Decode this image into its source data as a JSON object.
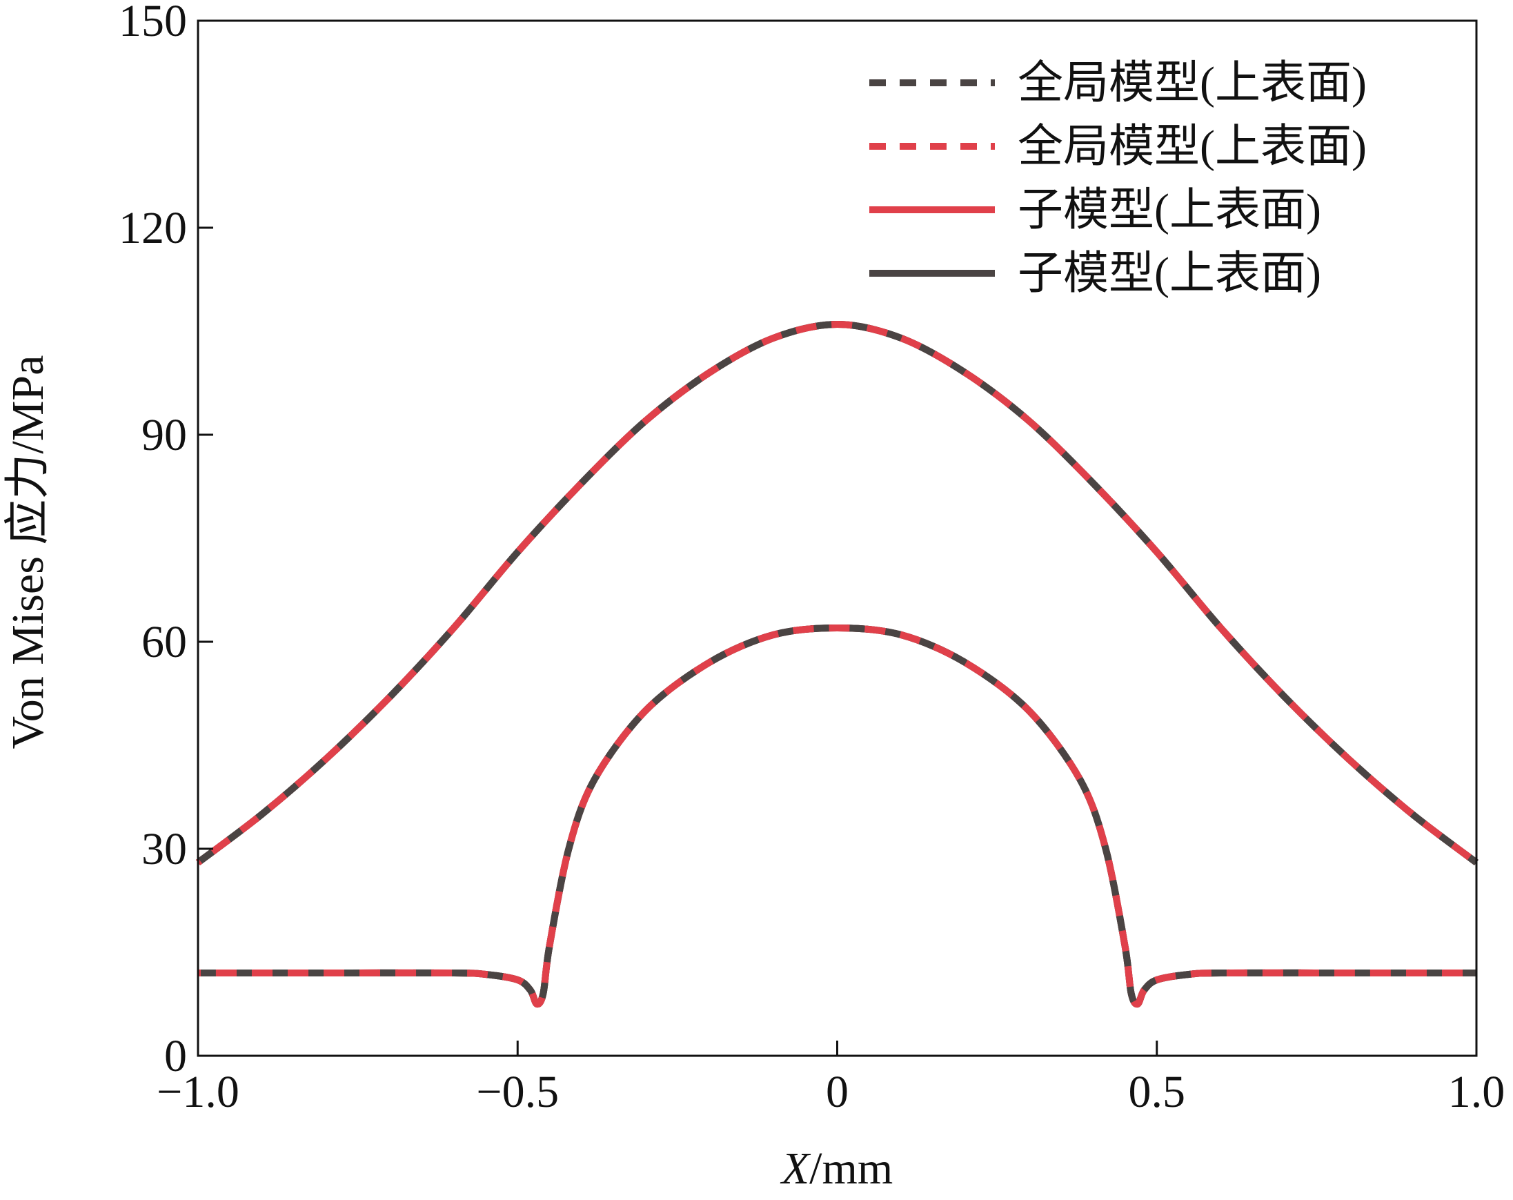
{
  "chart_data": {
    "type": "line",
    "title": "",
    "xlabel_italic": "X",
    "xlabel_unit": "/mm",
    "ylabel": "Von Mises 应力/MPa",
    "xlim": [
      -1.0,
      1.0
    ],
    "ylim": [
      0,
      150
    ],
    "xticks": [
      -1.0,
      -0.5,
      0,
      0.5,
      1.0
    ],
    "xtick_labels": [
      "−1.0",
      "−0.5",
      "0",
      "0.5",
      "1.0"
    ],
    "yticks": [
      0,
      30,
      60,
      90,
      120,
      150
    ],
    "ytick_labels": [
      "0",
      "30",
      "60",
      "90",
      "120",
      "150"
    ],
    "grid": false,
    "legend_position": "top-right",
    "colors": {
      "dark": "#4a4443",
      "red": "#e0404a"
    },
    "series": [
      {
        "name": "全局模型(上表面)",
        "style": "dashed",
        "color": "dark",
        "x": [
          -1.0,
          -0.9,
          -0.8,
          -0.7,
          -0.6,
          -0.5,
          -0.4,
          -0.3,
          -0.2,
          -0.1,
          0.0,
          0.1,
          0.2,
          0.3,
          0.4,
          0.5,
          0.6,
          0.7,
          0.8,
          0.9,
          1.0
        ],
        "y": [
          28,
          35,
          43,
          52,
          62,
          73,
          83,
          92,
          99,
          104,
          106,
          104,
          99,
          92,
          83,
          73,
          62,
          52,
          43,
          35,
          28
        ]
      },
      {
        "name": "全局模型(上表面)",
        "style": "dashed",
        "color": "red",
        "x": [
          -1.0,
          -0.9,
          -0.8,
          -0.7,
          -0.6,
          -0.5,
          -0.4,
          -0.3,
          -0.2,
          -0.1,
          0.0,
          0.1,
          0.2,
          0.3,
          0.4,
          0.5,
          0.6,
          0.7,
          0.8,
          0.9,
          1.0
        ],
        "y": [
          28,
          35,
          43,
          52,
          62,
          73,
          83,
          92,
          99,
          104,
          106,
          104,
          99,
          92,
          83,
          73,
          62,
          52,
          43,
          35,
          28
        ]
      },
      {
        "name": "子模型(上表面)",
        "style": "solid",
        "color": "red",
        "x": [
          -1.0,
          -0.8,
          -0.6,
          -0.55,
          -0.5,
          -0.48,
          -0.47,
          -0.46,
          -0.45,
          -0.42,
          -0.38,
          -0.3,
          -0.2,
          -0.1,
          0.0,
          0.1,
          0.2,
          0.3,
          0.38,
          0.42,
          0.45,
          0.46,
          0.47,
          0.48,
          0.5,
          0.55,
          0.6,
          0.8,
          1.0
        ],
        "y": [
          12,
          12,
          12,
          11.8,
          11,
          9.5,
          7.5,
          9,
          16,
          30,
          40,
          50,
          57,
          61,
          62,
          61,
          57,
          50,
          40,
          30,
          16,
          9,
          7.5,
          9.5,
          11,
          11.8,
          12,
          12,
          12
        ]
      },
      {
        "name": "子模型(上表面)",
        "style": "solid",
        "color": "dark",
        "x": [
          -1.0,
          -0.8,
          -0.6,
          -0.55,
          -0.5,
          -0.48,
          -0.47,
          -0.46,
          -0.45,
          -0.42,
          -0.38,
          -0.3,
          -0.2,
          -0.1,
          0.0,
          0.1,
          0.2,
          0.3,
          0.38,
          0.42,
          0.45,
          0.46,
          0.47,
          0.48,
          0.5,
          0.55,
          0.6,
          0.8,
          1.0
        ],
        "y": [
          12,
          12,
          12,
          11.8,
          11,
          9.5,
          7.5,
          9,
          16,
          30,
          40,
          50,
          57,
          61,
          62,
          61,
          57,
          50,
          40,
          30,
          16,
          9,
          7.5,
          9.5,
          11,
          11.8,
          12,
          12,
          12
        ]
      }
    ],
    "overlay_curves": [
      {
        "name": "全局模型(上表面)",
        "color": "dark",
        "style": "dashed",
        "x": [
          -1.0,
          -0.8,
          -0.6,
          -0.55,
          -0.5,
          -0.48,
          -0.47,
          -0.46,
          -0.45,
          -0.42,
          -0.38,
          -0.3,
          -0.2,
          -0.1,
          0.0,
          0.1,
          0.2,
          0.3,
          0.38,
          0.42,
          0.45,
          0.46,
          0.47,
          0.48,
          0.5,
          0.55,
          0.6,
          0.8,
          1.0
        ],
        "y": [
          12,
          12,
          12,
          11.8,
          11,
          9.5,
          7.5,
          9,
          16,
          30,
          40,
          50,
          57,
          61,
          62,
          61,
          57,
          50,
          40,
          30,
          16,
          9,
          7.5,
          9.5,
          11,
          11.8,
          12,
          12,
          12
        ]
      },
      {
        "name": "全局模型(上表面)",
        "color": "red",
        "style": "dashed",
        "x": [
          -1.0,
          -0.8,
          -0.6,
          -0.55,
          -0.5,
          -0.48,
          -0.47,
          -0.46,
          -0.45,
          -0.42,
          -0.38,
          -0.3,
          -0.2,
          -0.1,
          0.0,
          0.1,
          0.2,
          0.3,
          0.38,
          0.42,
          0.45,
          0.46,
          0.47,
          0.48,
          0.5,
          0.55,
          0.6,
          0.8,
          1.0
        ],
        "y": [
          12,
          12,
          12,
          11.8,
          11,
          9.5,
          7.5,
          9,
          16,
          30,
          40,
          50,
          57,
          61,
          62,
          61,
          57,
          50,
          40,
          30,
          16,
          9,
          7.5,
          9.5,
          11,
          11.8,
          12,
          12,
          12
        ]
      },
      {
        "name": "子模型(上表面)",
        "color": "red",
        "style": "solid",
        "x": [
          -1.0,
          -0.9,
          -0.8,
          -0.7,
          -0.6,
          -0.5,
          -0.4,
          -0.3,
          -0.2,
          -0.1,
          0.0,
          0.1,
          0.2,
          0.3,
          0.4,
          0.5,
          0.6,
          0.7,
          0.8,
          0.9,
          1.0
        ],
        "y": [
          28,
          35,
          43,
          52,
          62,
          73,
          83,
          92,
          99,
          104,
          106,
          104,
          99,
          92,
          83,
          73,
          62,
          52,
          43,
          35,
          28
        ]
      },
      {
        "name": "子模型(上表面)",
        "color": "dark",
        "style": "solid",
        "x": [
          -1.0,
          -0.9,
          -0.8,
          -0.7,
          -0.6,
          -0.5,
          -0.4,
          -0.3,
          -0.2,
          -0.1,
          0.0,
          0.1,
          0.2,
          0.3,
          0.4,
          0.5,
          0.6,
          0.7,
          0.8,
          0.9,
          1.0
        ],
        "y": [
          28,
          35,
          43,
          52,
          62,
          73,
          83,
          92,
          99,
          104,
          106,
          104,
          99,
          92,
          83,
          73,
          62,
          52,
          43,
          35,
          28
        ]
      }
    ]
  }
}
